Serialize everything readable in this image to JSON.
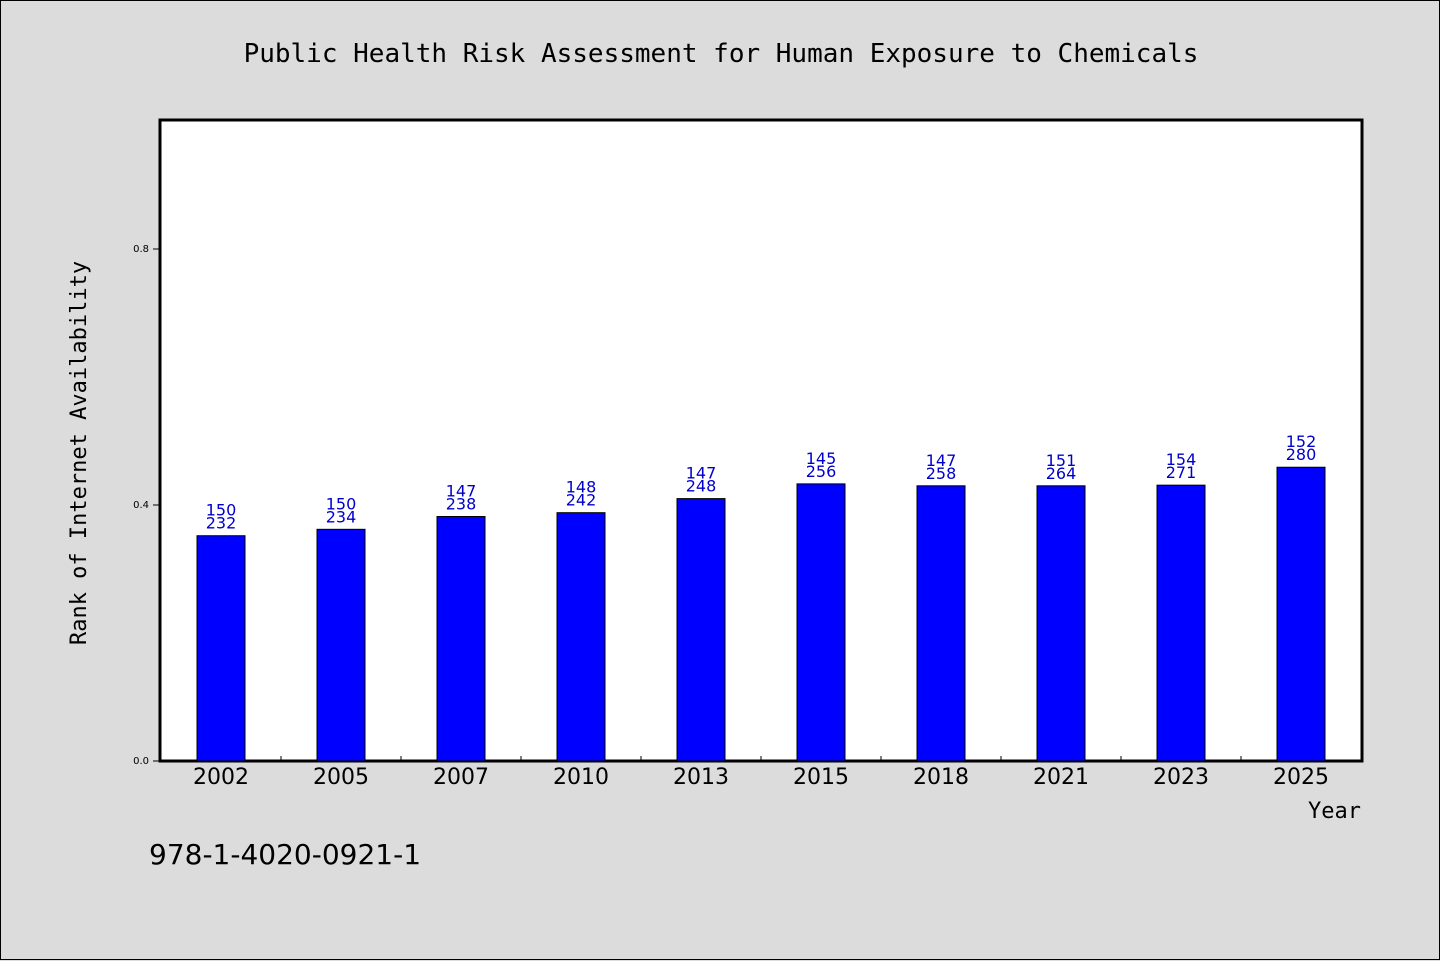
{
  "chart_data": {
    "type": "bar",
    "title": "Public Health Risk Assessment for Human Exposure to Chemicals",
    "xlabel": "Year",
    "ylabel": "Rank of Internet Availability",
    "categories": [
      "2002",
      "2005",
      "2007",
      "2010",
      "2013",
      "2015",
      "2018",
      "2021",
      "2023",
      "2025"
    ],
    "values": [
      0.352,
      0.362,
      0.382,
      0.388,
      0.41,
      0.433,
      0.43,
      0.43,
      0.431,
      0.459
    ],
    "label_top": [
      "150",
      "150",
      "147",
      "148",
      "147",
      "145",
      "147",
      "151",
      "154",
      "152"
    ],
    "label_bottom": [
      "232",
      "234",
      "238",
      "242",
      "248",
      "256",
      "258",
      "264",
      "271",
      "280"
    ],
    "ylim": [
      0,
      1.0
    ],
    "yticks": [
      0.0,
      0.4,
      0.8
    ],
    "ytick_labels": [
      "0.0",
      "0.4",
      "0.8"
    ],
    "grid": false,
    "bar_color": "#0000ff",
    "label_color": "#0000cc",
    "background_color": "#dcdcdc",
    "plot_background": "#ffffff"
  },
  "footer": {
    "isbn": "978-1-4020-0921-1"
  }
}
